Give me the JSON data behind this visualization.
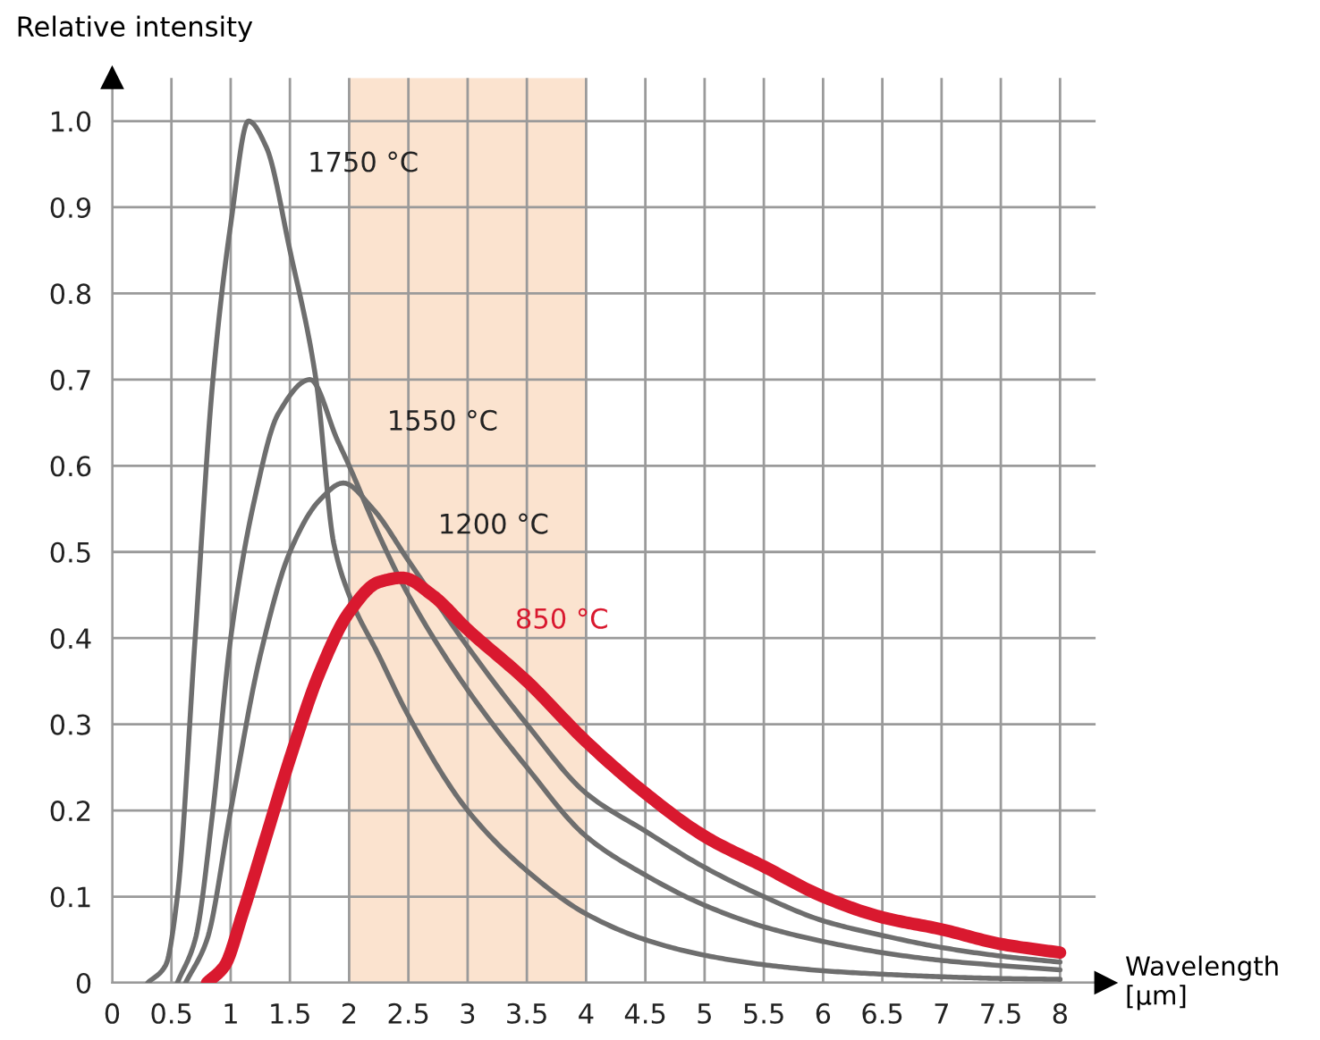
{
  "chart_data": {
    "type": "line",
    "xlabel": "Wavelength\n[µm]",
    "ylabel": "Relative intensity",
    "xlim": [
      0,
      8.3
    ],
    "ylim": [
      0,
      1.05
    ],
    "xticks": [
      0,
      0.5,
      1,
      1.5,
      2,
      2.5,
      3,
      3.5,
      4,
      4.5,
      5,
      5.5,
      6,
      6.5,
      7,
      7.5,
      8
    ],
    "yticks": [
      0,
      0.1,
      0.2,
      0.3,
      0.4,
      0.5,
      0.6,
      0.7,
      0.8,
      0.9,
      {
        "value": 1,
        "label": "1.0"
      }
    ],
    "grid": true,
    "legend": false,
    "marker": "none",
    "line_style": "solid",
    "bands": [
      {
        "axis": "x",
        "from": 2,
        "to": 4,
        "color": "#fbe3cf"
      }
    ],
    "series": [
      {
        "name": "1750 °C",
        "color": "#6e6e6e",
        "x": [
          0.3,
          0.45,
          0.55,
          0.7,
          0.85,
          1.0,
          1.15,
          1.3,
          1.5,
          1.72,
          1.87,
          2.0,
          2.25,
          2.5,
          3.0,
          3.5,
          4.0,
          4.5,
          5.0,
          5.5,
          6.0,
          6.5,
          7.0,
          7.5,
          8.0
        ],
        "values": [
          0,
          0.02,
          0.1,
          0.4,
          0.7,
          0.88,
          1.0,
          0.97,
          0.85,
          0.7,
          0.51,
          0.45,
          0.38,
          0.31,
          0.2,
          0.13,
          0.08,
          0.05,
          0.032,
          0.021,
          0.014,
          0.01,
          0.007,
          0.005,
          0.004
        ]
      },
      {
        "name": "1550 °C",
        "color": "#6e6e6e",
        "x": [
          0.55,
          0.7,
          0.85,
          1.0,
          1.2,
          1.4,
          1.67,
          1.9,
          2.0,
          2.25,
          2.5,
          3.0,
          3.5,
          4.0,
          4.5,
          5.0,
          5.5,
          6.0,
          6.5,
          7.0,
          7.5,
          8.0
        ],
        "values": [
          0,
          0.05,
          0.2,
          0.4,
          0.56,
          0.66,
          0.7,
          0.63,
          0.6,
          0.52,
          0.45,
          0.34,
          0.25,
          0.17,
          0.125,
          0.09,
          0.065,
          0.048,
          0.035,
          0.026,
          0.02,
          0.015
        ]
      },
      {
        "name": "1200 °C",
        "color": "#6e6e6e",
        "x": [
          0.62,
          0.8,
          1.0,
          1.25,
          1.5,
          1.75,
          1.95,
          2.2,
          2.5,
          3.0,
          3.5,
          4.0,
          4.5,
          5.0,
          5.5,
          6.0,
          6.5,
          7.0,
          7.5,
          8.0
        ],
        "values": [
          0,
          0.05,
          0.2,
          0.38,
          0.5,
          0.56,
          0.58,
          0.55,
          0.49,
          0.39,
          0.3,
          0.22,
          0.176,
          0.134,
          0.1,
          0.072,
          0.055,
          0.041,
          0.031,
          0.024
        ]
      },
      {
        "name": "850 °C",
        "color": "#d9192f",
        "x": [
          0.8,
          0.95,
          1.1,
          1.3,
          1.5,
          1.75,
          2.0,
          2.25,
          2.45,
          2.7,
          3.0,
          3.5,
          4.0,
          4.5,
          5.0,
          5.5,
          6.0,
          6.5,
          7.0,
          7.5,
          8.0
        ],
        "values": [
          0,
          0.02,
          0.08,
          0.17,
          0.26,
          0.36,
          0.43,
          0.465,
          0.47,
          0.45,
          0.41,
          0.35,
          0.28,
          0.22,
          0.17,
          0.135,
          0.1,
          0.076,
          0.062,
          0.045,
          0.035
        ]
      }
    ]
  }
}
